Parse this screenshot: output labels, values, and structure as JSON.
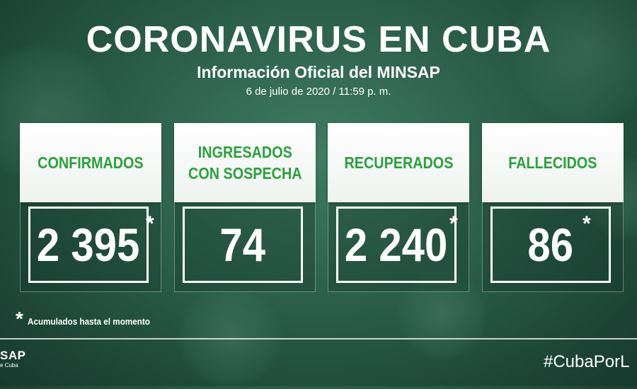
{
  "header": {
    "title": "CORONAVIRUS EN CUBA",
    "subtitle": "Información Oficial del MINSAP",
    "date": "6 de julio de 2020 / 11:59 p. m."
  },
  "cards": [
    {
      "label": "CONFIRMADOS",
      "value": "2 395",
      "star": "*"
    },
    {
      "label_line1": "INGRESADOS",
      "label_line2": "CON SOSPECHA",
      "value": "74"
    },
    {
      "label": "RECUPERADOS",
      "value": "2 240",
      "star": "*"
    },
    {
      "label": "FALLECIDOS",
      "value": "86",
      "star": "*"
    }
  ],
  "footnote": {
    "star": "*",
    "text": "Acumulados hasta el momento"
  },
  "footer": {
    "logo_main": "SAP",
    "logo_sub": "e Cuba",
    "hashtag": "#CubaPorL"
  },
  "colors": {
    "accent_green": "#2aa13c",
    "background": "#2b5e4b"
  }
}
